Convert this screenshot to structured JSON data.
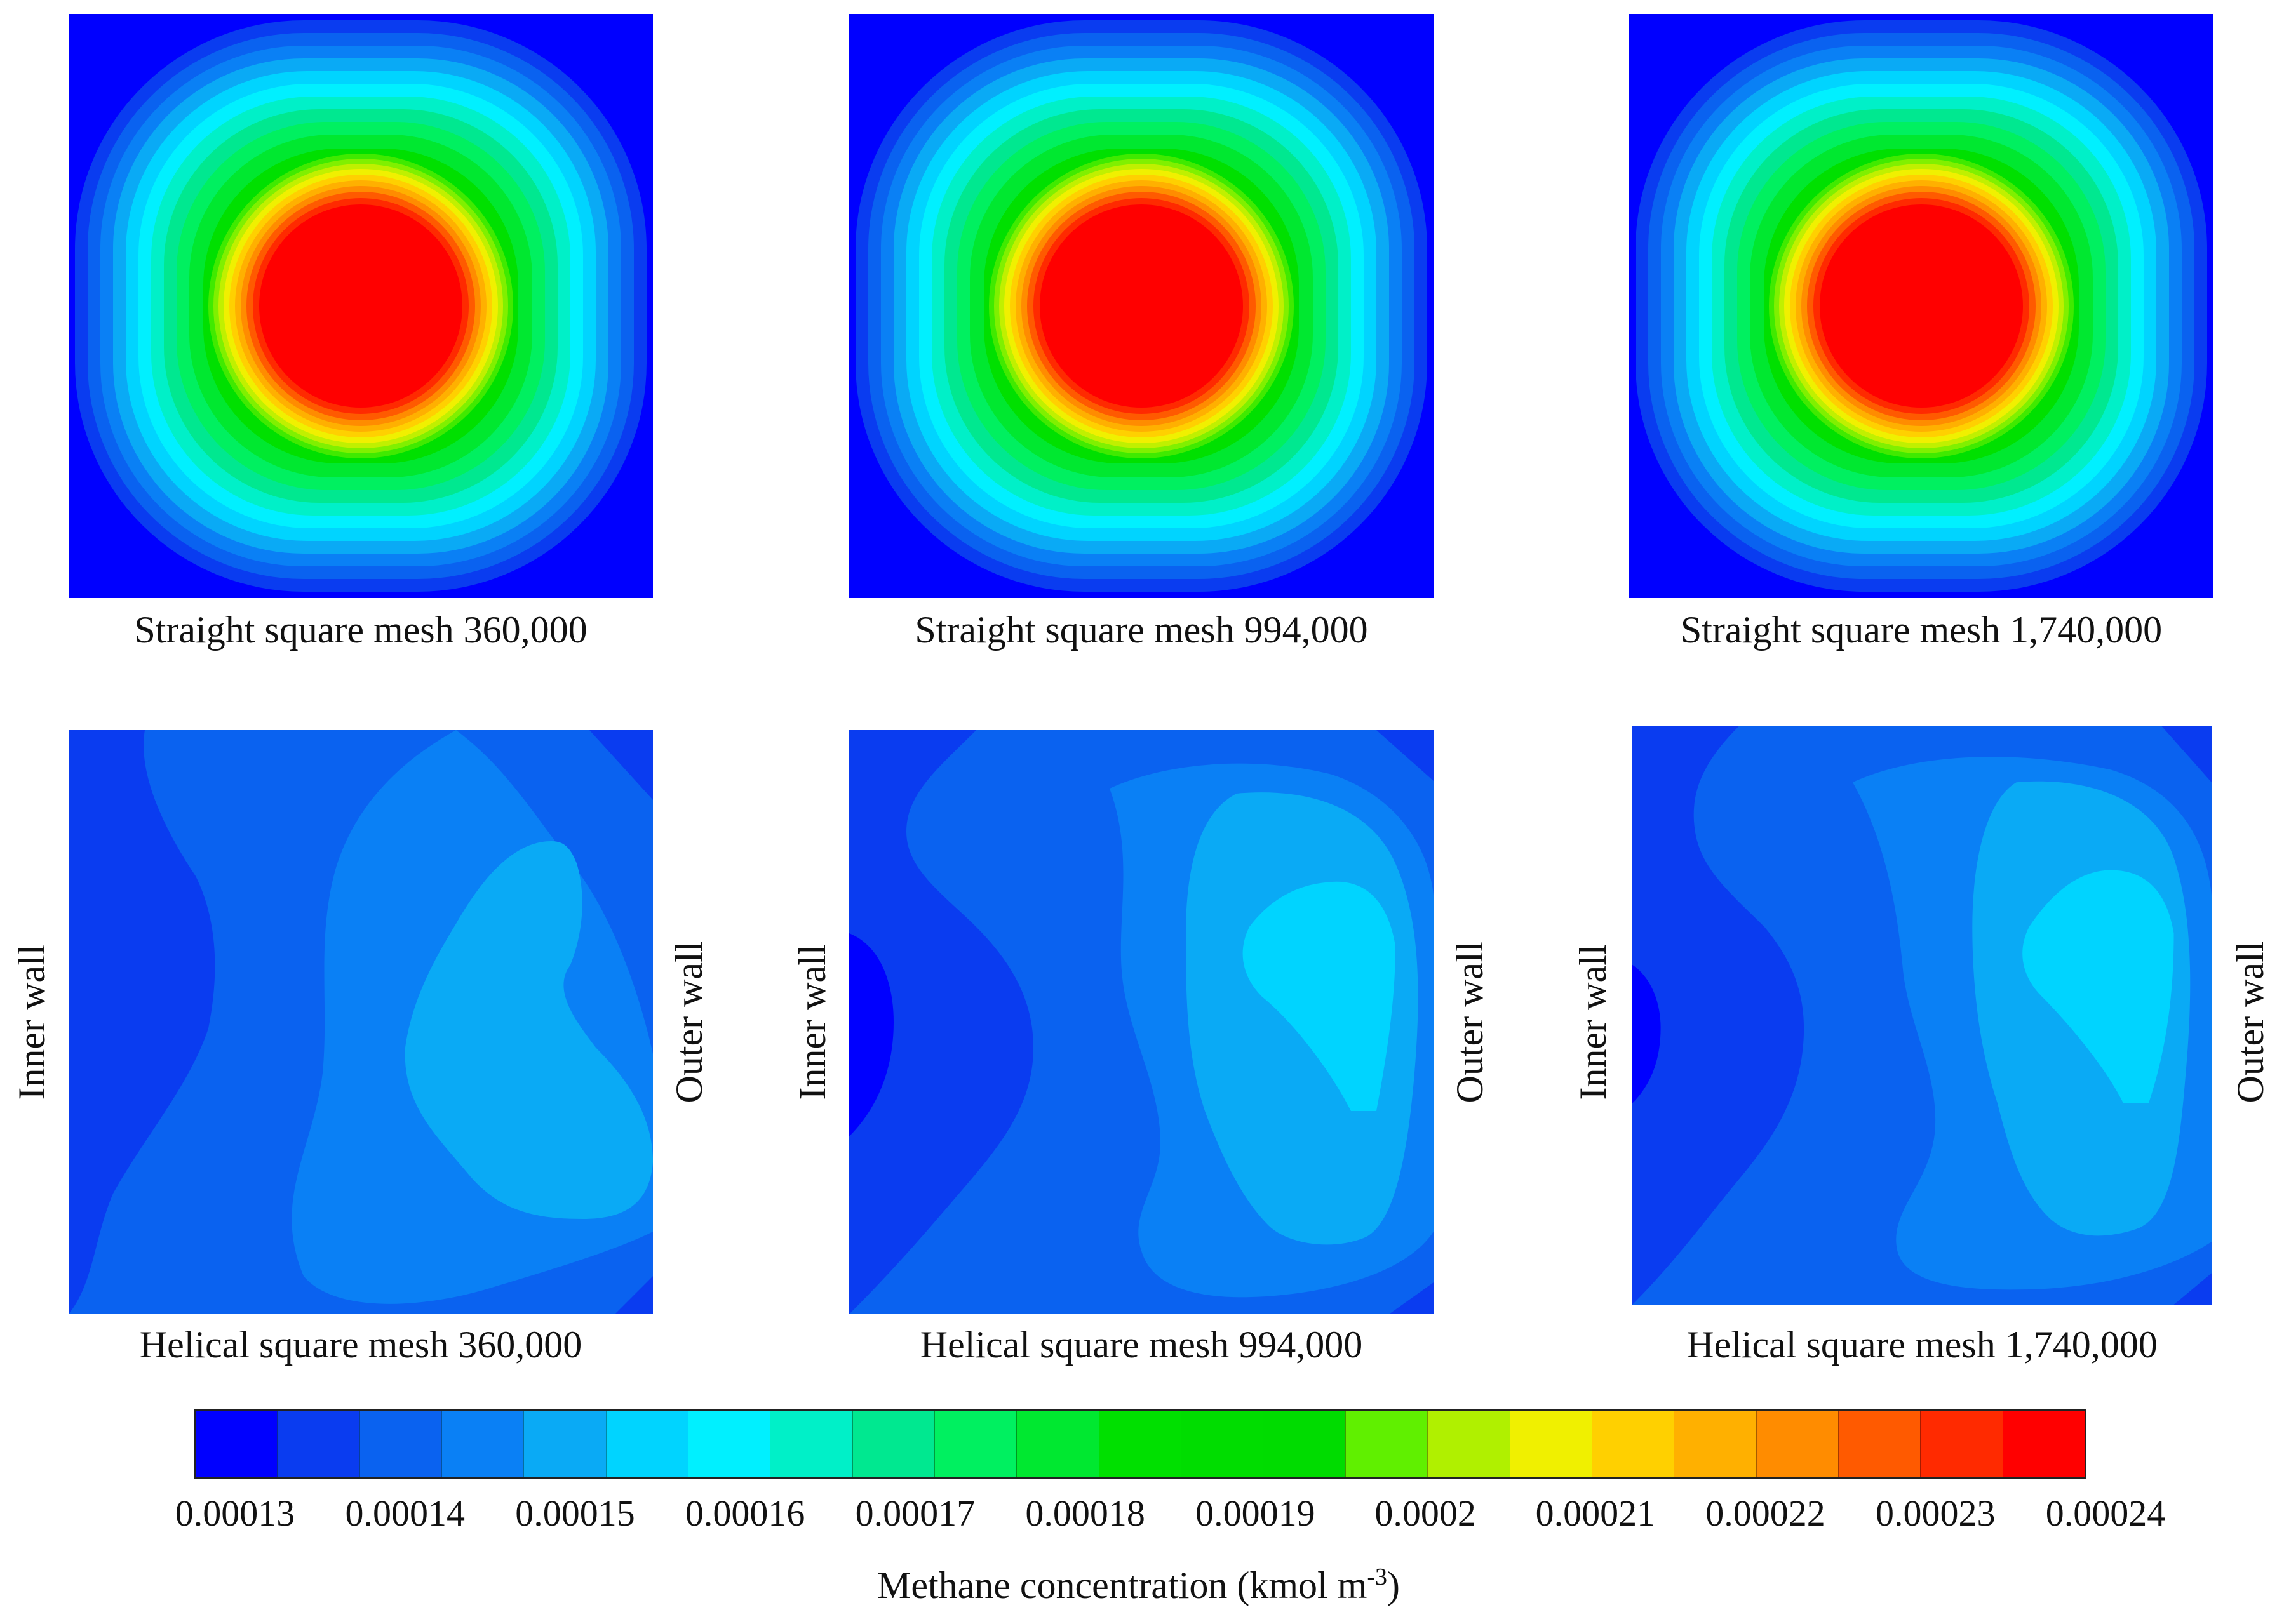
{
  "panels": [
    {
      "type": "straight",
      "caption": "Straight square mesh 360,000"
    },
    {
      "type": "straight",
      "caption": "Straight square mesh 994,000"
    },
    {
      "type": "straight",
      "caption": "Straight square mesh 1,740,000"
    },
    {
      "type": "helical",
      "caption": "Helical square mesh 360,000",
      "inner_label": "Inner wall",
      "outer_label": "Outer wall"
    },
    {
      "type": "helical",
      "caption": "Helical square mesh 994,000",
      "inner_label": "Inner wall",
      "outer_label": "Outer wall"
    },
    {
      "type": "helical",
      "caption": "Helical square mesh 1,740,000",
      "inner_label": "Inner wall",
      "outer_label": "Outer wall"
    }
  ],
  "colorbar": {
    "title_main": "Methane concentration (kmol m",
    "title_exp": "-3",
    "title_end": ")",
    "ticks": [
      "0.00013",
      "0.00014",
      "0.00015",
      "0.00016",
      "0.00017",
      "0.00018",
      "0.00019",
      "0.0002",
      "0.00021",
      "0.00022",
      "0.00023",
      "0.00024"
    ],
    "colors": [
      "#0000ff",
      "#0a3cf0",
      "#0a62f0",
      "#0a80f5",
      "#0aaaf5",
      "#00d4ff",
      "#00f0ff",
      "#00f0c8",
      "#00e890",
      "#00f060",
      "#00e830",
      "#00e000",
      "#00dd00",
      "#00dc00",
      "#60f000",
      "#b0f000",
      "#f0f000",
      "#ffd000",
      "#ffb000",
      "#ff8c00",
      "#ff5a00",
      "#ff2a00",
      "#ff0000"
    ]
  }
}
